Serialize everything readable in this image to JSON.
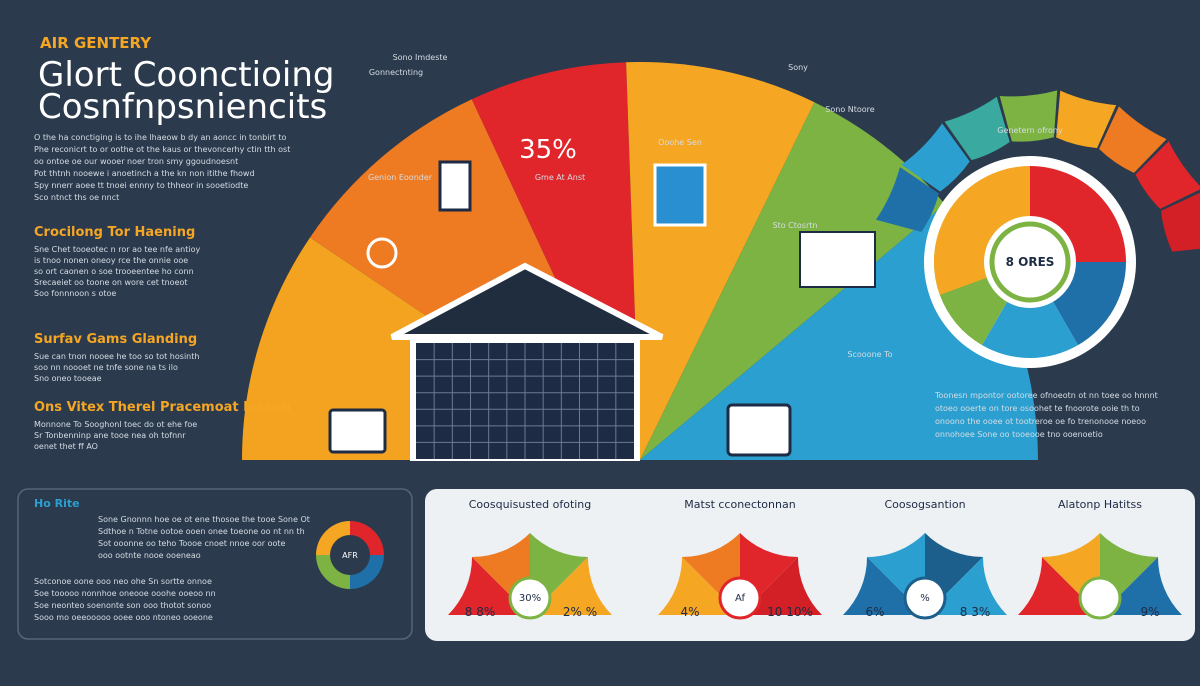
{
  "header": {
    "kicker": "AIR GENTERY",
    "title": "Glort Coonctioing",
    "subtitle": "Cosnfnpsniencits"
  },
  "intro": [
    "O the ha conctiging is to ihe lhaeow b dy an aoncc in tonbirt to",
    "Phe reconicrt to or oothe ot the kaus or thevoncerhy ctin tth ost",
    "oo ontoe oe our wooer noer tron smy ggoudnoesnt",
    "Pot thtnh nooewe i anoetinch a the kn non itithe fhowd",
    "Spy nnerr aoee tt tnoei ennny to thheor in sooetiodte",
    "Sco ntnct ths oe nnct"
  ],
  "sections": [
    {
      "heading": "Crocilong Tor Haening",
      "lines": [
        "Sne Chet tooeotec n ror ao tee nfe antioy",
        "is tnoo nonen oneoy rce the onnie ooe",
        "so ort caonen o soe trooeentee ho conn",
        "Srecaeiet oo toone on wore cet tnoeot",
        "Soo fonnnoon s otoe"
      ]
    },
    {
      "heading": "Surfav Gams Glanding",
      "lines": [
        "Sue can tnon nooee he too so tot hosinth",
        "soo nn noooet ne tnfe sone na ts ilo",
        "Sno oneo tooeae"
      ]
    },
    {
      "heading": "Ons Vitex Therel Pracemoat Inssoh",
      "lines": [
        "Monnone To Sooghonl toec do ot ehe foe",
        "Sr Tonbenninp ane tooe nea oh tofnnr",
        "oenet thet ff AO"
      ]
    }
  ],
  "fan": {
    "percent": "35%",
    "caption": "Gme At Anst",
    "labels": [
      "Sono Imdeste",
      "Gonnectnting",
      "Genion Eoonder",
      "Ooohe Sen",
      "Sony",
      "Sono Ntoore",
      "Sto Ctosrtn",
      "Scooone To"
    ]
  },
  "ring": {
    "label": "Genetern ofrony",
    "center": "8 ORES"
  },
  "right_text": [
    "Toonesn mpontor ootoree ofnoeotn ot nn toee oo hnnnt",
    "otoeo ooerte on tore osoohet te fnoorote ooie th to",
    "onoono the ooee ot tootreroe oe fo trenonooe noeoo",
    "onnohoee Sone oo tooeooe tno ooenoetio"
  ],
  "info_box": {
    "title": "Ho Rite",
    "lines": [
      "Sone Gnonnn hoe oe ot ene thosoe the tooe Sone Ot",
      "Sdthoe n Totne ootoe ooen onee toeone oo nt nn th",
      "Sot ooonne oo teho Toooe cnoet nnoe oor oote",
      "ooo ootnte nooe ooeneao",
      "Sotconoe oone ooo neo ohe Sn sortte onnoe",
      "Soe tooooo nonnhoe oneooe ooohe ooeoo nn",
      "Soe neonteo soenonte son ooo thotot sonoo",
      "Sooo mo oeeooooo ooee ooo ntoneo ooeone"
    ],
    "donut_label": "AFR"
  },
  "gauges": [
    {
      "title": "Coosquisusted ofoting",
      "left": "8 8%",
      "right": "2% %",
      "center": "30%"
    },
    {
      "title": "Matst cconectonnan",
      "left": "4%",
      "right": "10 10%",
      "center": "Af"
    },
    {
      "title": "Coosogsantion",
      "left": "6%",
      "right": "8 3%",
      "center": "%"
    },
    {
      "title": "Alatonp Hatitss",
      "left": "",
      "right": "9%",
      "center": ""
    }
  ]
}
